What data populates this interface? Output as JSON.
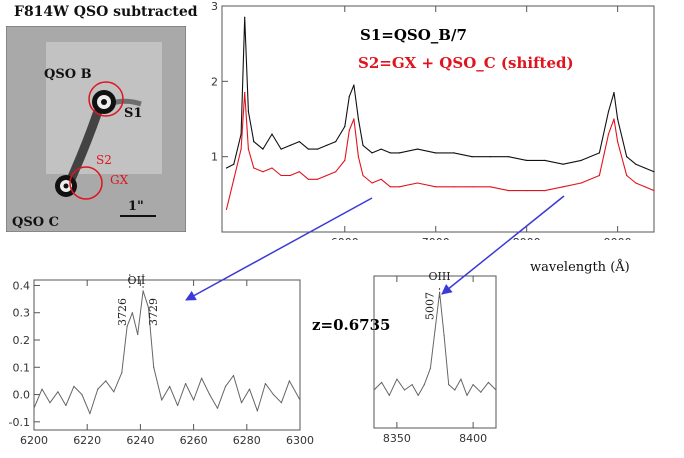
{
  "image": {
    "title": "F814W QSO subtracted",
    "labels": {
      "qso_b": "QSO B",
      "qso_c": "QSO C",
      "s1": "S1",
      "s2": "S2",
      "gx": "GX",
      "scale": "1\""
    }
  },
  "redshift_label": "z=0.6735",
  "colors": {
    "black_series": "#111111",
    "red_series": "#e0141e",
    "arrow": "#3a3ad8"
  },
  "chart_data": [
    {
      "type": "line",
      "id": "main-spectrum",
      "xlabel": "wavelength (Å)",
      "ylabel": "",
      "xlim": [
        4650,
        9400
      ],
      "ylim": [
        0,
        3
      ],
      "xticks": [
        6000,
        7000,
        8000,
        9000
      ],
      "yticks": [
        1,
        2,
        3
      ],
      "series": [
        {
          "name": "S1=QSO_B/7",
          "color": "#111111",
          "x": [
            4700,
            4780,
            4860,
            4900,
            4940,
            5000,
            5100,
            5200,
            5300,
            5400,
            5500,
            5600,
            5700,
            5800,
            5900,
            6000,
            6050,
            6100,
            6150,
            6200,
            6300,
            6400,
            6500,
            6600,
            6800,
            7000,
            7200,
            7400,
            7600,
            7800,
            8000,
            8200,
            8400,
            8600,
            8800,
            8900,
            8960,
            9000,
            9100,
            9200,
            9300,
            9400
          ],
          "y": [
            0.85,
            0.9,
            1.3,
            2.85,
            1.6,
            1.2,
            1.1,
            1.3,
            1.1,
            1.15,
            1.2,
            1.1,
            1.1,
            1.15,
            1.2,
            1.4,
            1.8,
            1.95,
            1.5,
            1.15,
            1.05,
            1.1,
            1.05,
            1.05,
            1.1,
            1.05,
            1.05,
            1.0,
            1.0,
            1.0,
            0.95,
            0.95,
            0.9,
            0.95,
            1.05,
            1.6,
            1.85,
            1.5,
            1.0,
            0.9,
            0.85,
            0.8
          ]
        },
        {
          "name": "S2=GX + QSO_C (shifted)",
          "color": "#e0141e",
          "x": [
            4700,
            4780,
            4860,
            4900,
            4940,
            5000,
            5100,
            5200,
            5300,
            5400,
            5500,
            5600,
            5700,
            5800,
            5900,
            6000,
            6050,
            6100,
            6150,
            6200,
            6300,
            6400,
            6500,
            6600,
            6800,
            7000,
            7200,
            7400,
            7600,
            7800,
            8000,
            8200,
            8400,
            8600,
            8800,
            8900,
            8960,
            9000,
            9100,
            9200,
            9300,
            9400
          ],
          "y": [
            0.3,
            0.7,
            1.1,
            1.85,
            1.1,
            0.85,
            0.8,
            0.85,
            0.75,
            0.75,
            0.8,
            0.7,
            0.7,
            0.75,
            0.8,
            0.95,
            1.35,
            1.5,
            1.0,
            0.75,
            0.65,
            0.7,
            0.6,
            0.6,
            0.65,
            0.6,
            0.6,
            0.6,
            0.6,
            0.55,
            0.55,
            0.55,
            0.6,
            0.65,
            0.75,
            1.3,
            1.5,
            1.2,
            0.75,
            0.65,
            0.6,
            0.55
          ]
        }
      ]
    },
    {
      "type": "line",
      "id": "oii-inset",
      "annotations": [
        "OII",
        "3726",
        "3729"
      ],
      "xlim": [
        6200,
        6300
      ],
      "ylim": [
        -0.13,
        0.42
      ],
      "xticks": [
        6200,
        6220,
        6240,
        6260,
        6280,
        6300
      ],
      "yticks": [
        -0.1,
        0.0,
        0.1,
        0.2,
        0.3,
        0.4
      ],
      "series": [
        {
          "name": "",
          "color": "#666666",
          "x": [
            6200,
            6203,
            6206,
            6209,
            6212,
            6215,
            6218,
            6221,
            6224,
            6227,
            6230,
            6233,
            6235,
            6237,
            6239,
            6241,
            6243,
            6245,
            6248,
            6251,
            6254,
            6257,
            6260,
            6263,
            6266,
            6269,
            6272,
            6275,
            6278,
            6281,
            6284,
            6287,
            6290,
            6293,
            6296,
            6300
          ],
          "y": [
            -0.05,
            0.02,
            -0.03,
            0.01,
            -0.04,
            0.03,
            0.0,
            -0.07,
            0.02,
            0.05,
            0.01,
            0.08,
            0.25,
            0.3,
            0.22,
            0.38,
            0.32,
            0.1,
            -0.02,
            0.03,
            -0.04,
            0.04,
            -0.02,
            0.06,
            0.0,
            -0.05,
            0.03,
            0.07,
            -0.03,
            0.02,
            -0.06,
            0.04,
            0.0,
            -0.03,
            0.05,
            -0.02
          ]
        }
      ]
    },
    {
      "type": "line",
      "id": "oiii-inset",
      "annotations": [
        "OIII",
        "5007"
      ],
      "xlim": [
        8335,
        8415
      ],
      "ylim": [
        -0.3,
        1.1
      ],
      "xticks": [
        8350,
        8400
      ],
      "yticks": [],
      "series": [
        {
          "name": "",
          "color": "#666666",
          "x": [
            8335,
            8340,
            8345,
            8350,
            8355,
            8360,
            8364,
            8368,
            8372,
            8375,
            8378,
            8381,
            8384,
            8388,
            8392,
            8396,
            8400,
            8405,
            8410,
            8415
          ],
          "y": [
            0.05,
            0.12,
            0.0,
            0.15,
            0.05,
            0.1,
            0.0,
            0.1,
            0.25,
            0.6,
            0.95,
            0.55,
            0.1,
            0.05,
            0.15,
            0.0,
            0.1,
            0.03,
            0.12,
            0.05
          ]
        }
      ]
    }
  ]
}
